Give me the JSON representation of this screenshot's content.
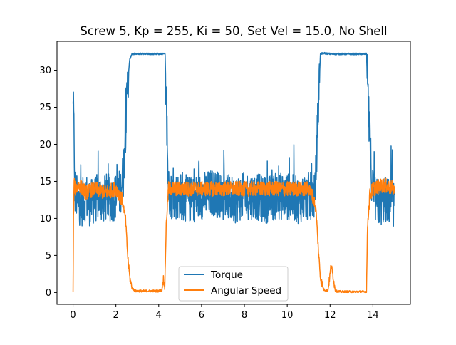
{
  "chart_data": {
    "type": "line",
    "title": "Screw 5, Kp = 255, Ki = 50, Set Vel = 15.0, No Shell",
    "xlabel": "",
    "ylabel": "",
    "xlim": [
      -0.75,
      15.75
    ],
    "ylim": [
      -1.6,
      33.9
    ],
    "grid": false,
    "legend_position": "lower center",
    "x_ticks": [
      0,
      2,
      4,
      6,
      8,
      10,
      12,
      14
    ],
    "y_ticks": [
      0,
      5,
      10,
      15,
      20,
      25,
      30
    ],
    "x_tick_labels": [
      "0",
      "2",
      "4",
      "6",
      "8",
      "10",
      "12",
      "14"
    ],
    "y_tick_labels": [
      "0",
      "5",
      "10",
      "15",
      "20",
      "25",
      "30"
    ],
    "series": [
      {
        "name": "Torque",
        "color": "#1f77b4",
        "x": [
          0,
          0.03,
          0.06,
          0.1,
          0.2,
          0.4,
          0.6,
          0.8,
          1.0,
          1.2,
          1.4,
          1.6,
          1.8,
          2.0,
          2.2,
          2.35,
          2.45,
          2.55,
          2.65,
          2.75,
          3.0,
          3.5,
          4.0,
          4.3,
          4.38,
          4.45,
          4.6,
          5.0,
          5.5,
          6.0,
          6.5,
          7.0,
          7.5,
          8.0,
          8.5,
          9.0,
          9.5,
          10.0,
          10.5,
          11.0,
          11.3,
          11.45,
          11.55,
          11.7,
          12.0,
          12.5,
          13.0,
          13.5,
          13.7,
          13.8,
          13.95,
          14.1,
          14.3,
          14.6,
          15.0
        ],
        "y": [
          24.5,
          26.6,
          15.0,
          13.5,
          12.5,
          12.0,
          13.0,
          12.0,
          12.5,
          13.0,
          12.5,
          13.0,
          12.5,
          13.0,
          13.5,
          16.0,
          22.0,
          28.5,
          31.5,
          32.2,
          32.2,
          32.2,
          32.2,
          32.2,
          22.0,
          14.0,
          13.0,
          13.0,
          12.5,
          13.0,
          13.5,
          13.0,
          12.5,
          13.0,
          13.0,
          12.5,
          13.0,
          13.0,
          12.5,
          13.0,
          13.0,
          25.0,
          32.2,
          32.3,
          32.2,
          32.2,
          32.2,
          32.2,
          32.2,
          24.0,
          15.0,
          12.5,
          12.0,
          12.5,
          12.0
        ]
      },
      {
        "name": "Angular Speed",
        "color": "#ff7f0e",
        "x": [
          0,
          0.02,
          0.05,
          0.1,
          0.3,
          0.6,
          1.0,
          1.5,
          2.0,
          2.2,
          2.3,
          2.45,
          2.55,
          2.65,
          2.75,
          2.9,
          3.5,
          4.0,
          4.15,
          4.22,
          4.28,
          4.35,
          4.45,
          5.0,
          6.0,
          7.0,
          8.0,
          9.0,
          10.0,
          11.0,
          11.2,
          11.35,
          11.45,
          11.55,
          11.7,
          11.9,
          12.0,
          12.05,
          12.12,
          12.25,
          12.5,
          13.0,
          13.5,
          13.7,
          13.75,
          13.85,
          14.0,
          14.5,
          15.0
        ],
        "y": [
          0.0,
          10.0,
          14.5,
          14.0,
          14.5,
          13.5,
          14.0,
          13.5,
          14.0,
          13.0,
          12.5,
          10.0,
          5.0,
          2.0,
          0.6,
          0.2,
          0.2,
          0.2,
          0.3,
          2.0,
          0.5,
          9.0,
          14.0,
          14.0,
          14.0,
          14.0,
          14.0,
          14.0,
          14.0,
          14.0,
          13.0,
          11.0,
          6.0,
          2.0,
          0.4,
          0.2,
          2.5,
          3.7,
          2.5,
          0.2,
          0.1,
          0.1,
          0.1,
          0.1,
          9.0,
          13.0,
          14.0,
          14.5,
          14.0
        ]
      }
    ]
  }
}
